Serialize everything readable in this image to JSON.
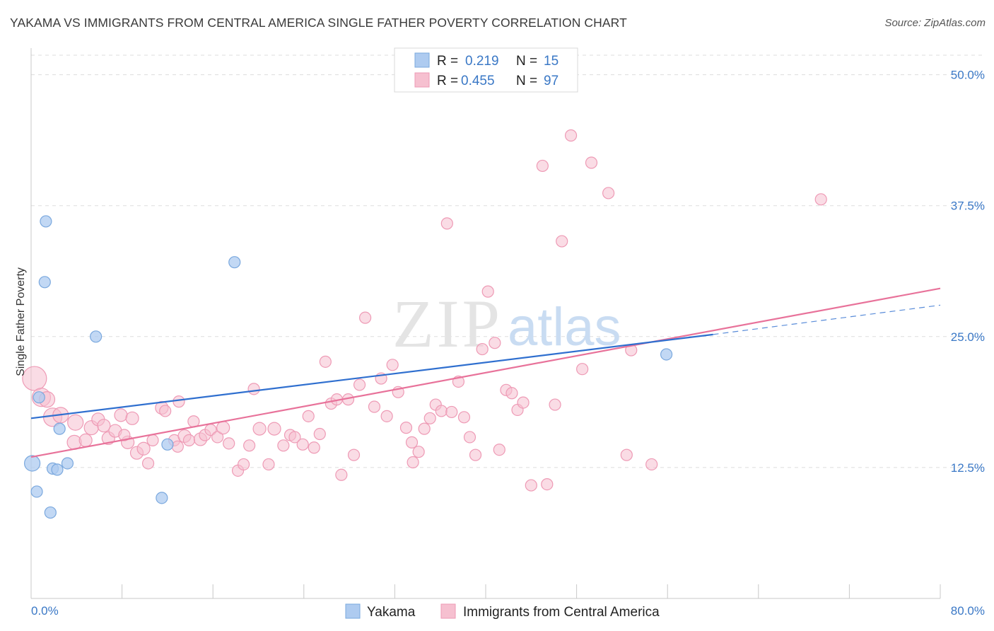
{
  "header": {
    "title": "YAKAMA VS IMMIGRANTS FROM CENTRAL AMERICA SINGLE FATHER POVERTY CORRELATION CHART",
    "source": "Source: ZipAtlas.com"
  },
  "watermark": {
    "zip": "ZIP",
    "atlas": "atlas"
  },
  "colors": {
    "yakama_fill": "#aecbf0",
    "yakama_stroke": "#7aa8de",
    "yakama_line": "#2f6fcf",
    "central_fill": "#f6c0d0",
    "central_stroke": "#ee9ab5",
    "central_line": "#e8729a",
    "tick_label": "#3a78c6",
    "grid": "#dddddd"
  },
  "legend": {
    "rows": [
      {
        "r_label": "R = ",
        "r_value": "0.219",
        "n_label": "N = ",
        "n_value": "15"
      },
      {
        "r_label": "R = ",
        "r_value": "0.455",
        "n_label": "N = ",
        "n_value": "97"
      }
    ]
  },
  "chart_data": {
    "type": "scatter",
    "title": "YAKAMA VS IMMIGRANTS FROM CENTRAL AMERICA SINGLE FATHER POVERTY CORRELATION CHART",
    "xlabel": "",
    "ylabel": "Single Father Poverty",
    "xlim": [
      0,
      80
    ],
    "ylim": [
      0,
      52
    ],
    "x_tick_labels": [
      "0.0%",
      "80.0%"
    ],
    "y_ticks": [
      12.5,
      25.0,
      37.5,
      50.0
    ],
    "y_tick_labels": [
      "12.5%",
      "25.0%",
      "37.5%",
      "50.0%"
    ],
    "grid": true,
    "legend_position": "top-center",
    "series": [
      {
        "name": "Yakama",
        "color": "#aecbf0",
        "points": [
          [
            0.1,
            12.9,
            11
          ],
          [
            0.5,
            10.2,
            8
          ],
          [
            0.7,
            19.2,
            8
          ],
          [
            1.3,
            36.0,
            8
          ],
          [
            1.2,
            30.2,
            8
          ],
          [
            1.7,
            8.2,
            8
          ],
          [
            1.9,
            12.4,
            8
          ],
          [
            2.3,
            12.3,
            8
          ],
          [
            2.5,
            16.2,
            8
          ],
          [
            3.2,
            12.9,
            8
          ],
          [
            5.7,
            25.0,
            8
          ],
          [
            11.5,
            9.6,
            8
          ],
          [
            12.0,
            14.7,
            8
          ],
          [
            17.9,
            32.1,
            8
          ],
          [
            55.9,
            23.3,
            8
          ]
        ],
        "trend": {
          "x": [
            0,
            60
          ],
          "y": [
            17.2,
            25.2
          ]
        },
        "trend_dashed": {
          "x": [
            60,
            80
          ],
          "y": [
            25.2,
            28.0
          ]
        }
      },
      {
        "name": "Immigrants from Central America",
        "color": "#f6c0d0",
        "points": [
          [
            0.3,
            21.0,
            17
          ],
          [
            0.9,
            19.2,
            13
          ],
          [
            1.4,
            19.0,
            11
          ],
          [
            1.9,
            17.3,
            13
          ],
          [
            2.6,
            17.5,
            11
          ],
          [
            3.9,
            16.8,
            11
          ],
          [
            3.8,
            14.9,
            10
          ],
          [
            4.8,
            15.1,
            9
          ],
          [
            5.3,
            16.3,
            10
          ],
          [
            5.9,
            17.1,
            9
          ],
          [
            6.4,
            16.5,
            9
          ],
          [
            6.8,
            15.3,
            9
          ],
          [
            7.4,
            16.0,
            9
          ],
          [
            7.9,
            17.5,
            9
          ],
          [
            8.5,
            14.9,
            9
          ],
          [
            8.9,
            17.2,
            9
          ],
          [
            9.3,
            13.9,
            9
          ],
          [
            9.9,
            14.3,
            9
          ],
          [
            10.3,
            12.9,
            8
          ],
          [
            10.7,
            15.1,
            8
          ],
          [
            11.5,
            18.2,
            9
          ],
          [
            11.8,
            17.9,
            8
          ],
          [
            12.6,
            15.1,
            8
          ],
          [
            12.9,
            14.5,
            8
          ],
          [
            13.5,
            15.5,
            9
          ],
          [
            13.9,
            15.1,
            8
          ],
          [
            14.3,
            16.9,
            8
          ],
          [
            14.9,
            15.2,
            9
          ],
          [
            15.3,
            15.6,
            8
          ],
          [
            15.8,
            16.1,
            8
          ],
          [
            16.4,
            15.4,
            8
          ],
          [
            16.9,
            16.3,
            9
          ],
          [
            17.4,
            14.8,
            8
          ],
          [
            18.2,
            12.2,
            8
          ],
          [
            18.7,
            12.8,
            8
          ],
          [
            19.2,
            14.6,
            8
          ],
          [
            19.6,
            20.0,
            8
          ],
          [
            20.1,
            16.2,
            9
          ],
          [
            20.9,
            12.8,
            8
          ],
          [
            21.4,
            16.2,
            9
          ],
          [
            22.2,
            14.6,
            8
          ],
          [
            22.8,
            15.6,
            8
          ],
          [
            23.2,
            15.4,
            8
          ],
          [
            23.9,
            14.7,
            8
          ],
          [
            24.4,
            17.4,
            8
          ],
          [
            24.9,
            14.4,
            8
          ],
          [
            25.4,
            15.7,
            8
          ],
          [
            25.9,
            22.6,
            8
          ],
          [
            26.4,
            18.6,
            8
          ],
          [
            26.9,
            19.0,
            8
          ],
          [
            27.3,
            11.8,
            8
          ],
          [
            27.9,
            19.0,
            8
          ],
          [
            28.4,
            13.7,
            8
          ],
          [
            28.9,
            20.4,
            8
          ],
          [
            29.4,
            26.8,
            8
          ],
          [
            30.2,
            18.3,
            8
          ],
          [
            30.8,
            21.0,
            8
          ],
          [
            31.3,
            17.4,
            8
          ],
          [
            31.8,
            22.3,
            8
          ],
          [
            32.3,
            19.7,
            8
          ],
          [
            33.0,
            16.3,
            8
          ],
          [
            33.6,
            13.0,
            8
          ],
          [
            34.1,
            14.0,
            8
          ],
          [
            34.6,
            16.2,
            8
          ],
          [
            35.1,
            17.2,
            8
          ],
          [
            35.6,
            18.5,
            8
          ],
          [
            36.1,
            17.9,
            8
          ],
          [
            36.6,
            35.8,
            8
          ],
          [
            37.0,
            17.8,
            8
          ],
          [
            37.6,
            20.7,
            8
          ],
          [
            38.1,
            17.3,
            8
          ],
          [
            38.6,
            15.4,
            8
          ],
          [
            39.1,
            13.7,
            8
          ],
          [
            39.7,
            23.8,
            8
          ],
          [
            40.2,
            29.3,
            8
          ],
          [
            40.8,
            24.4,
            8
          ],
          [
            41.2,
            14.2,
            8
          ],
          [
            41.8,
            19.9,
            8
          ],
          [
            42.3,
            19.6,
            8
          ],
          [
            42.8,
            18.0,
            8
          ],
          [
            43.3,
            18.7,
            8
          ],
          [
            44.0,
            10.8,
            8
          ],
          [
            45.0,
            41.3,
            8
          ],
          [
            45.4,
            10.9,
            8
          ],
          [
            46.1,
            18.5,
            8
          ],
          [
            46.7,
            34.1,
            8
          ],
          [
            47.5,
            44.2,
            8
          ],
          [
            48.5,
            21.9,
            8
          ],
          [
            49.3,
            41.6,
            8
          ],
          [
            50.8,
            38.7,
            8
          ],
          [
            52.4,
            13.7,
            8
          ],
          [
            52.8,
            23.7,
            8
          ],
          [
            54.6,
            12.8,
            8
          ],
          [
            69.5,
            38.1,
            8
          ],
          [
            13.0,
            18.8,
            8
          ],
          [
            8.2,
            15.6,
            8
          ],
          [
            33.5,
            14.9,
            8
          ]
        ],
        "trend": {
          "x": [
            0,
            80
          ],
          "y": [
            13.5,
            29.6
          ]
        }
      }
    ]
  },
  "bottom_legend": {
    "items": [
      "Yakama",
      "Immigrants from Central America"
    ]
  }
}
